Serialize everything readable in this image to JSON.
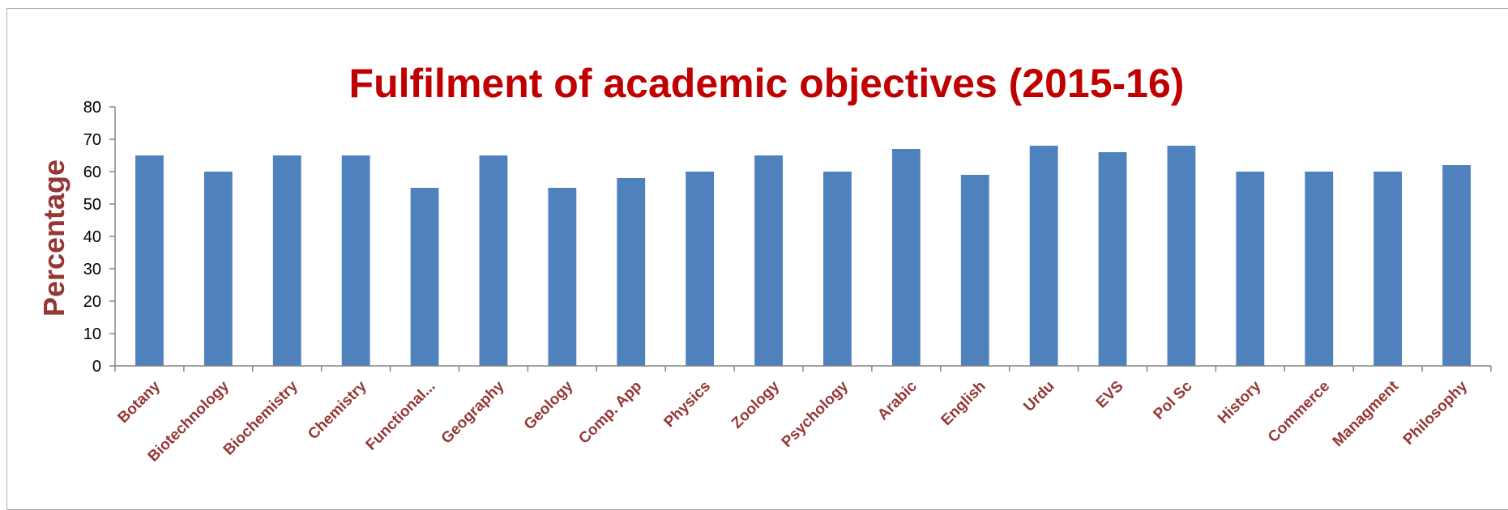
{
  "chart_data": {
    "type": "bar",
    "title": "Fulfilment of academic objectives (2015-16)",
    "xlabel": "",
    "ylabel": "Percentage",
    "ylim": [
      0,
      80
    ],
    "yticks": [
      0,
      10,
      20,
      30,
      40,
      50,
      60,
      70,
      80
    ],
    "grid": false,
    "legend": "none",
    "categories": [
      "Botany",
      "Biotechnology",
      "Biochemistry",
      "Chemistry",
      "Functional...",
      "Geography",
      "Geology",
      "Comp. App",
      "Physics",
      "Zoology",
      "Psychology",
      "Arabic",
      "English",
      "Urdu",
      "EVS",
      "Pol Sc",
      "History",
      "Commerce",
      "Managment",
      "Philosophy"
    ],
    "values": [
      65,
      60,
      65,
      65,
      55,
      65,
      55,
      58,
      60,
      65,
      60,
      67,
      59,
      68,
      66,
      68,
      60,
      60,
      60,
      62
    ]
  },
  "colors": {
    "bar": "#4f81bd",
    "title": "#c00000",
    "label": "#953735",
    "axis": "#868686"
  }
}
